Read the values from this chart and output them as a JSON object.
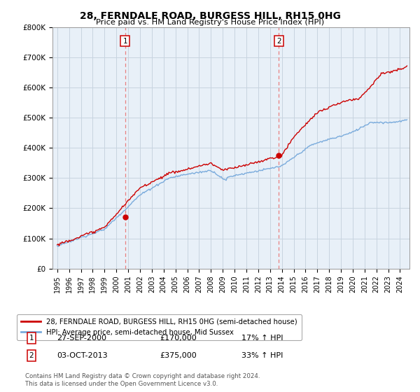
{
  "title": "28, FERNDALE ROAD, BURGESS HILL, RH15 0HG",
  "subtitle": "Price paid vs. HM Land Registry's House Price Index (HPI)",
  "ylabel_ticks": [
    "£0",
    "£100K",
    "£200K",
    "£300K",
    "£400K",
    "£500K",
    "£600K",
    "£700K",
    "£800K"
  ],
  "ylim": [
    0,
    800000
  ],
  "xlim_start": 1994.6,
  "xlim_end": 2024.8,
  "vline1_x": 2000.74,
  "vline2_x": 2013.75,
  "marker1_x": 2000.74,
  "marker1_y": 170000,
  "marker2_x": 2013.75,
  "marker2_y": 375000,
  "legend_line1": "28, FERNDALE ROAD, BURGESS HILL, RH15 0HG (semi-detached house)",
  "legend_line2": "HPI: Average price, semi-detached house, Mid Sussex",
  "annotation1_num": "1",
  "annotation1_date": "27-SEP-2000",
  "annotation1_price": "£170,000",
  "annotation1_hpi": "17% ↑ HPI",
  "annotation2_num": "2",
  "annotation2_date": "03-OCT-2013",
  "annotation2_price": "£375,000",
  "annotation2_hpi": "33% ↑ HPI",
  "footnote": "Contains HM Land Registry data © Crown copyright and database right 2024.\nThis data is licensed under the Open Government Licence v3.0.",
  "line_color_red": "#cc0000",
  "line_color_blue": "#7aabdc",
  "vline_color": "#e88080",
  "bg_plot_color": "#e8f0f8",
  "background_color": "#ffffff",
  "grid_color": "#c8d4e0"
}
